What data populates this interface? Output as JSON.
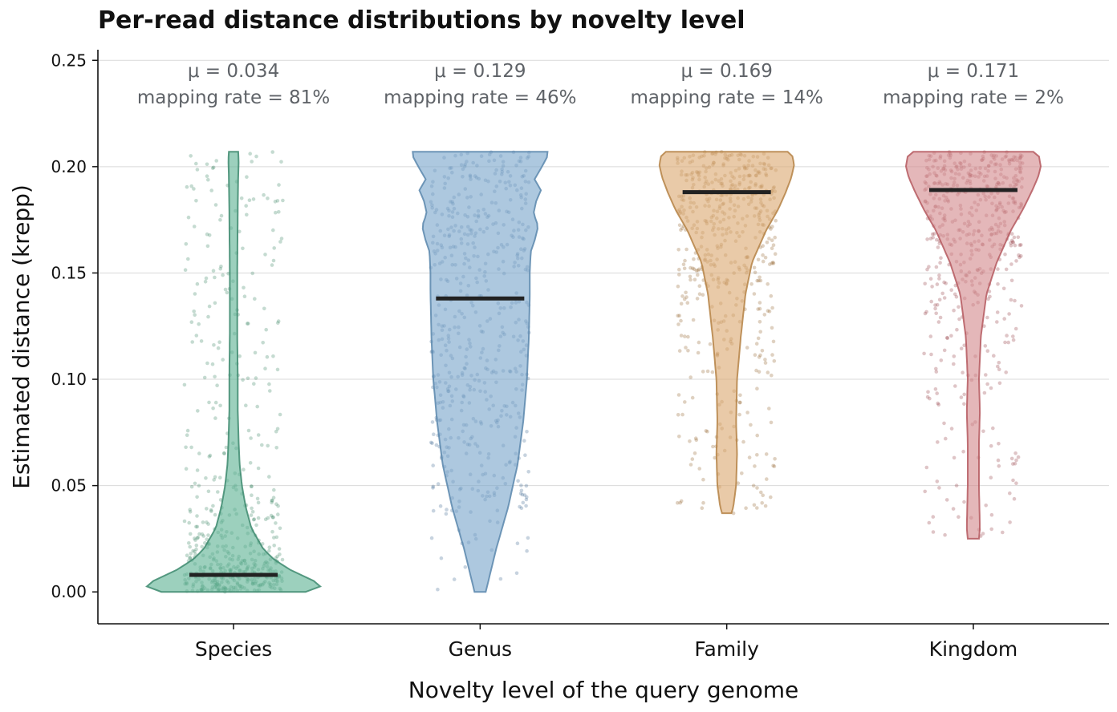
{
  "chart_data": {
    "type": "violin",
    "title": "Per-read distance distributions by novelty level",
    "xlabel": "Novelty level of the query genome",
    "ylabel": "Estimated distance (krepp)",
    "ylim": [
      -0.015,
      0.255
    ],
    "yticks": [
      0.0,
      0.05,
      0.1,
      0.15,
      0.2,
      0.25
    ],
    "ytick_labels": [
      "0.00",
      "0.05",
      "0.10",
      "0.15",
      "0.20",
      "0.25"
    ],
    "grid": "horizontal",
    "categories": [
      "Species",
      "Genus",
      "Family",
      "Kingdom"
    ],
    "series": [
      {
        "category": "Species",
        "color": "#5fb394",
        "edge": "#3d8a6e",
        "dot": "#2e7d5b",
        "mean": 0.034,
        "mapping_rate": "81%",
        "median": 0.008,
        "annotation_line1": "μ = 0.034",
        "annotation_line2": "mapping rate = 81%",
        "density": [
          [
            0,
            0.77
          ],
          [
            0.003,
            0.95
          ],
          [
            0.006,
            0.82
          ],
          [
            0.01,
            0.62
          ],
          [
            0.015,
            0.44
          ],
          [
            0.02,
            0.32
          ],
          [
            0.03,
            0.19
          ],
          [
            0.04,
            0.13
          ],
          [
            0.05,
            0.09
          ],
          [
            0.06,
            0.065
          ],
          [
            0.07,
            0.055
          ],
          [
            0.085,
            0.045
          ],
          [
            0.1,
            0.045
          ],
          [
            0.12,
            0.04
          ],
          [
            0.15,
            0.04
          ],
          [
            0.18,
            0.045
          ],
          [
            0.195,
            0.05
          ],
          [
            0.203,
            0.055
          ],
          [
            0.207,
            0.05
          ]
        ]
      },
      {
        "category": "Genus",
        "color": "#7aa7cc",
        "edge": "#5b87ad",
        "dot": "#36628c",
        "mean": 0.129,
        "mapping_rate": "46%",
        "median": 0.138,
        "annotation_line1": "μ = 0.129",
        "annotation_line2": "mapping rate = 46%",
        "density": [
          [
            0,
            0.06
          ],
          [
            0.02,
            0.17
          ],
          [
            0.04,
            0.3
          ],
          [
            0.06,
            0.4
          ],
          [
            0.08,
            0.46
          ],
          [
            0.1,
            0.5
          ],
          [
            0.12,
            0.52
          ],
          [
            0.14,
            0.53
          ],
          [
            0.15,
            0.53
          ],
          [
            0.16,
            0.54
          ],
          [
            0.165,
            0.58
          ],
          [
            0.172,
            0.62
          ],
          [
            0.178,
            0.57
          ],
          [
            0.184,
            0.6
          ],
          [
            0.189,
            0.65
          ],
          [
            0.194,
            0.58
          ],
          [
            0.2,
            0.66
          ],
          [
            0.205,
            0.72
          ],
          [
            0.207,
            0.72
          ]
        ]
      },
      {
        "category": "Family",
        "color": "#dcaa72",
        "edge": "#b58345",
        "dot": "#8c5a1f",
        "mean": 0.169,
        "mapping_rate": "14%",
        "median": 0.188,
        "annotation_line1": "μ = 0.169",
        "annotation_line2": "mapping rate = 14%",
        "density": [
          [
            0.037,
            0.05
          ],
          [
            0.04,
            0.07
          ],
          [
            0.05,
            0.1
          ],
          [
            0.065,
            0.11
          ],
          [
            0.08,
            0.1
          ],
          [
            0.1,
            0.11
          ],
          [
            0.12,
            0.15
          ],
          [
            0.14,
            0.2
          ],
          [
            0.155,
            0.27
          ],
          [
            0.17,
            0.42
          ],
          [
            0.18,
            0.55
          ],
          [
            0.188,
            0.63
          ],
          [
            0.195,
            0.69
          ],
          [
            0.201,
            0.72
          ],
          [
            0.205,
            0.7
          ],
          [
            0.207,
            0.65
          ]
        ]
      },
      {
        "category": "Kingdom",
        "color": "#d48a8e",
        "edge": "#b5595f",
        "dot": "#8c2f35",
        "mean": 0.171,
        "mapping_rate": "2%",
        "median": 0.189,
        "annotation_line1": "μ = 0.171",
        "annotation_line2": "mapping rate = 2%",
        "density": [
          [
            0.025,
            0.06
          ],
          [
            0.03,
            0.07
          ],
          [
            0.05,
            0.06
          ],
          [
            0.07,
            0.06
          ],
          [
            0.085,
            0.07
          ],
          [
            0.1,
            0.06
          ],
          [
            0.12,
            0.08
          ],
          [
            0.14,
            0.14
          ],
          [
            0.155,
            0.25
          ],
          [
            0.17,
            0.4
          ],
          [
            0.18,
            0.53
          ],
          [
            0.188,
            0.62
          ],
          [
            0.195,
            0.69
          ],
          [
            0.2,
            0.72
          ],
          [
            0.205,
            0.7
          ],
          [
            0.207,
            0.64
          ]
        ]
      }
    ]
  }
}
